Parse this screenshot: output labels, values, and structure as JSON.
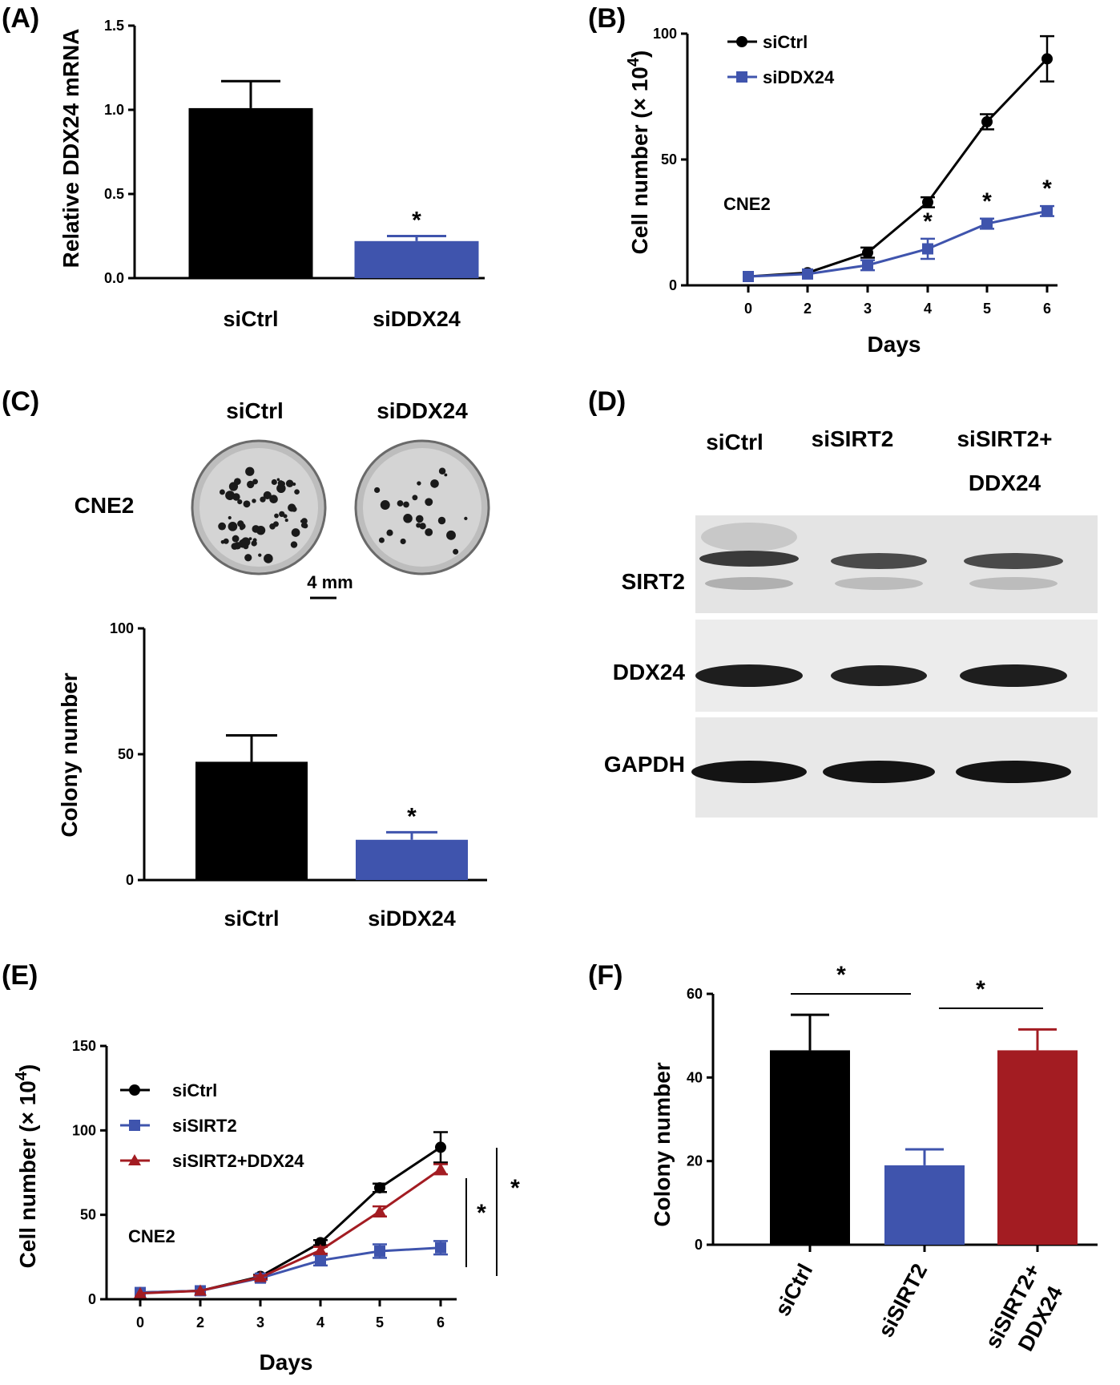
{
  "colors": {
    "black": "#000000",
    "blue": "#3f54ad",
    "red": "#a31c22"
  },
  "chart_data": [
    {
      "panel": "(A)",
      "type": "bar",
      "categories": [
        "siCtrl",
        "siDDX24"
      ],
      "values": [
        1.01,
        0.22
      ],
      "errors": [
        0.16,
        0.03
      ],
      "ylabel": "Relative DDX24 mRNA",
      "xlabel": "",
      "ylim": [
        0,
        1.5
      ],
      "yticks": [
        "0.0",
        "0.5",
        "1.0",
        "1.5"
      ],
      "significance": [
        "",
        "*"
      ]
    },
    {
      "panel": "(B)",
      "type": "line",
      "x": [
        0,
        2,
        3,
        4,
        5,
        6
      ],
      "xticks": [
        "0",
        "2",
        "3",
        "4",
        "5",
        "6"
      ],
      "series": [
        {
          "name": "siCtrl",
          "values": [
            3.5,
            5,
            13,
            33,
            65,
            90
          ],
          "errors": [
            0,
            0,
            2,
            2,
            3,
            9
          ]
        },
        {
          "name": "siDDX24",
          "values": [
            3.5,
            4.5,
            8,
            14.5,
            24.5,
            29.5
          ],
          "errors": [
            0,
            0,
            2,
            4,
            2,
            2
          ]
        }
      ],
      "xlabel": "Days",
      "ylabel": "Cell number (× 10",
      "ylabel_sup": "4",
      "ylabel_end": ")",
      "ylim": [
        0,
        100
      ],
      "yticks": [
        "0",
        "50",
        "100"
      ],
      "annotation": "CNE2",
      "significance": [
        "",
        "",
        "",
        "*",
        "*",
        "*"
      ]
    },
    {
      "panel": "(C)",
      "type": "bar",
      "categories": [
        "siCtrl",
        "siDDX24"
      ],
      "values": [
        47,
        16
      ],
      "errors": [
        10.5,
        3
      ],
      "ylabel": "Colony number",
      "xlabel": "",
      "ylim": [
        0,
        100
      ],
      "yticks": [
        "0",
        "50",
        "100"
      ],
      "significance": [
        "",
        "*"
      ]
    },
    {
      "panel": "(E)",
      "type": "line",
      "x": [
        0,
        2,
        3,
        4,
        5,
        6
      ],
      "xticks": [
        "0",
        "2",
        "3",
        "4",
        "5",
        "6"
      ],
      "series": [
        {
          "name": "siCtrl",
          "values": [
            4,
            5,
            13.5,
            33.5,
            66,
            90
          ],
          "errors": [
            0,
            0,
            1,
            1.5,
            2.5,
            9
          ]
        },
        {
          "name": "siSIRT2",
          "values": [
            4,
            5,
            12.5,
            23,
            28.5,
            30.5
          ],
          "errors": [
            0,
            0,
            1,
            3,
            4,
            4
          ]
        },
        {
          "name": "siSIRT2+DDX24",
          "values": [
            3.5,
            5,
            13,
            29,
            52,
            77
          ],
          "errors": [
            0,
            0,
            1,
            2,
            3,
            3
          ]
        }
      ],
      "xlabel": "Days",
      "ylabel": "Cell number (× 10",
      "ylabel_sup": "4",
      "ylabel_end": ")",
      "ylim": [
        0,
        150
      ],
      "yticks": [
        "0",
        "50",
        "100",
        "150"
      ],
      "annotation": "CNE2",
      "brackets": [
        "*",
        "*"
      ]
    },
    {
      "panel": "(F)",
      "type": "bar",
      "categories": [
        "siCtrl",
        "siSIRT2",
        "siSIRT2+ DDX24"
      ],
      "category_lines": [
        [
          "siCtrl"
        ],
        [
          "siSIRT2"
        ],
        [
          "siSIRT2+",
          "DDX24"
        ]
      ],
      "values": [
        46.5,
        19,
        46.5
      ],
      "errors": [
        8.5,
        3.8,
        5
      ],
      "ylabel": "Colony number",
      "xlabel": "",
      "ylim": [
        0,
        60
      ],
      "yticks": [
        "0",
        "20",
        "40",
        "60"
      ],
      "comparisons": [
        "*",
        "*"
      ]
    }
  ],
  "panel_c_images": {
    "label": "(C)",
    "columns": [
      "siCtrl",
      "siDDX24"
    ],
    "row_label": "CNE2",
    "scale_bar": "4 mm"
  },
  "panel_d_blot": {
    "label": "(D)",
    "lanes": [
      "siCtrl",
      "siSIRT2",
      "siSIRT2+",
      "DDX24"
    ],
    "bands": [
      "SIRT2",
      "DDX24",
      "GAPDH"
    ]
  }
}
